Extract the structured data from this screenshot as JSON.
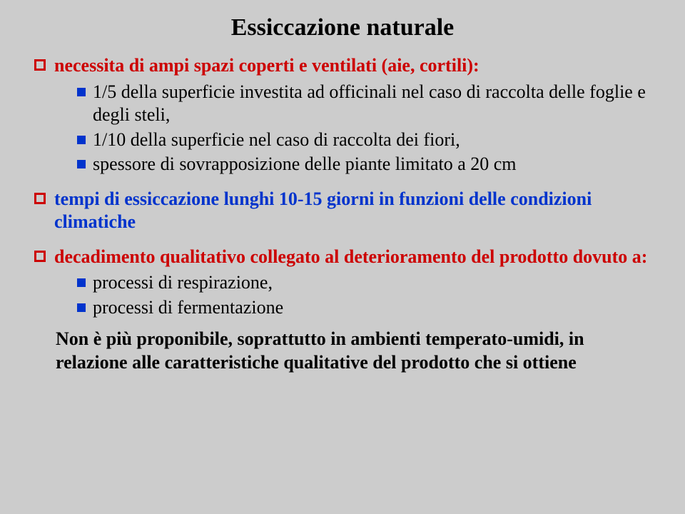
{
  "title": "Essiccazione naturale",
  "colors": {
    "text_black": "#000000",
    "text_red": "#cc0000",
    "text_blue": "#0033cc",
    "bullet_red_box": "#cc0000",
    "bullet_blue_sq": "#0033cc",
    "background": "#cccccc"
  },
  "font": {
    "family": "Times New Roman",
    "title_size": 34,
    "body_size": 26
  },
  "items": [
    {
      "level": 1,
      "color": "#cc0000",
      "box_color": "#cc0000",
      "text": "necessita di ampi spazi coperti e ventilati (aie, cortili):"
    },
    {
      "level": 2,
      "color": "#000000",
      "sq_color": "#0033cc",
      "text": "1/5 della superficie investita ad officinali nel caso di raccolta delle foglie e degli steli,"
    },
    {
      "level": 2,
      "color": "#000000",
      "sq_color": "#0033cc",
      "text": "1/10 della superficie nel caso di raccolta dei fiori,"
    },
    {
      "level": 2,
      "color": "#000000",
      "sq_color": "#0033cc",
      "text": "spessore di sovrapposizione delle piante limitato a 20 cm"
    },
    {
      "level": 1,
      "color": "#0033cc",
      "box_color": "#cc0000",
      "text": "tempi di essiccazione lunghi 10-15 giorni in funzioni delle condizioni climatiche",
      "spaced": true
    },
    {
      "level": 1,
      "color": "#cc0000",
      "box_color": "#cc0000",
      "text": "decadimento qualitativo collegato al deterioramento del prodotto dovuto a:",
      "spaced": true
    },
    {
      "level": 2,
      "color": "#000000",
      "sq_color": "#0033cc",
      "text": "processi di respirazione,"
    },
    {
      "level": 2,
      "color": "#000000",
      "sq_color": "#0033cc",
      "text": "processi di fermentazione"
    }
  ],
  "footer": {
    "color": "#000000",
    "text": "Non è più proponibile, soprattutto in ambienti temperato-umidi, in relazione alle caratteristiche qualitative del prodotto che si ottiene"
  }
}
